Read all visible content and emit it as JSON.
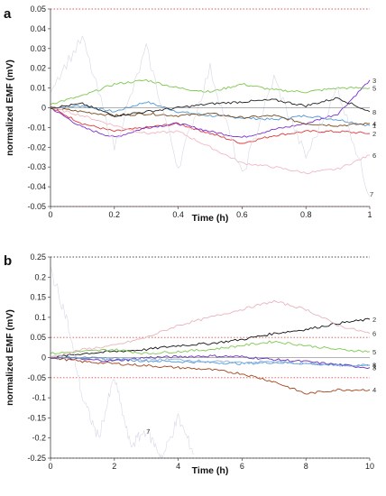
{
  "chart_data": [
    {
      "panel_label": "a",
      "type": "line",
      "xlabel": "Time (h)",
      "ylabel": "normalized EMF (mV)",
      "xlim": [
        0,
        1
      ],
      "ylim": [
        -0.05,
        0.05
      ],
      "xticks": [
        "0",
        "0.2",
        "0.4",
        "0.6",
        "0.8",
        "1"
      ],
      "yticks": [
        "-0.05",
        "-0.04",
        "-0.03",
        "-0.02",
        "-0.01",
        "0",
        "0.01",
        "0.02",
        "0.03",
        "0.04",
        "0.05"
      ],
      "reference_lines": [
        -0.05,
        0.05
      ],
      "grid": false,
      "series": [
        {
          "name": "1",
          "color": "#4f97d6",
          "x": [
            0,
            0.1,
            0.2,
            0.3,
            0.4,
            0.5,
            0.6,
            0.7,
            0.8,
            0.9,
            1
          ],
          "y": [
            0,
            0.001,
            -0.002,
            0.003,
            -0.002,
            -0.004,
            -0.005,
            -0.006,
            -0.004,
            -0.006,
            -0.009
          ]
        },
        {
          "name": "2",
          "color": "#e03a3a",
          "x": [
            0,
            0.1,
            0.2,
            0.3,
            0.4,
            0.5,
            0.6,
            0.7,
            0.8,
            0.9,
            1
          ],
          "y": [
            0,
            -0.008,
            -0.012,
            -0.01,
            -0.008,
            -0.013,
            -0.018,
            -0.014,
            -0.012,
            -0.012,
            -0.013
          ]
        },
        {
          "name": "3",
          "color": "#7a2fd0",
          "x": [
            0,
            0.1,
            0.2,
            0.3,
            0.4,
            0.5,
            0.6,
            0.7,
            0.8,
            0.9,
            1
          ],
          "y": [
            0,
            -0.01,
            -0.015,
            -0.01,
            -0.008,
            -0.012,
            -0.015,
            -0.011,
            -0.008,
            -0.003,
            0.014
          ]
        },
        {
          "name": "4",
          "color": "#7a4a1a",
          "x": [
            0,
            0.1,
            0.2,
            0.3,
            0.4,
            0.5,
            0.6,
            0.7,
            0.8,
            0.9,
            1
          ],
          "y": [
            0,
            -0.002,
            -0.004,
            -0.003,
            -0.004,
            -0.003,
            -0.005,
            -0.004,
            -0.008,
            -0.009,
            -0.008
          ]
        },
        {
          "name": "5",
          "color": "#7ec850",
          "x": [
            0,
            0.1,
            0.2,
            0.3,
            0.4,
            0.5,
            0.6,
            0.7,
            0.8,
            0.9,
            1
          ],
          "y": [
            0.002,
            0.006,
            0.012,
            0.014,
            0.01,
            0.008,
            0.012,
            0.009,
            0.008,
            0.01,
            0.01
          ]
        },
        {
          "name": "6",
          "color": "#f2b8c3",
          "x": [
            0,
            0.1,
            0.2,
            0.3,
            0.4,
            0.5,
            0.6,
            0.7,
            0.8,
            0.9,
            1
          ],
          "y": [
            0,
            -0.004,
            -0.009,
            -0.013,
            -0.012,
            -0.02,
            -0.028,
            -0.03,
            -0.033,
            -0.031,
            -0.024
          ]
        },
        {
          "name": "7",
          "color": "#d6d6e4",
          "x": [
            0,
            0.1,
            0.2,
            0.3,
            0.4,
            0.5,
            0.6,
            0.7,
            0.8,
            0.9,
            1
          ],
          "y": [
            0.01,
            0.035,
            -0.02,
            0.03,
            -0.03,
            0.02,
            -0.035,
            0.015,
            -0.025,
            0.01,
            -0.045
          ]
        },
        {
          "name": "8",
          "color": "#222222",
          "x": [
            0,
            0.1,
            0.2,
            0.3,
            0.4,
            0.5,
            0.6,
            0.7,
            0.8,
            0.9,
            1
          ],
          "y": [
            0,
            0.002,
            -0.004,
            -0.002,
            0,
            0.002,
            0.003,
            0.004,
            0.001,
            0.005,
            -0.002
          ]
        }
      ]
    },
    {
      "panel_label": "b",
      "type": "line",
      "xlabel": "Time (h)",
      "ylabel": "normalized EMF (mV)",
      "xlim": [
        0,
        10
      ],
      "ylim": [
        -0.25,
        0.25
      ],
      "xticks": [
        "0",
        "2",
        "4",
        "6",
        "8",
        "10"
      ],
      "yticks": [
        "-0.25",
        "-0.2",
        "-0.15",
        "-0.1",
        "-0.05",
        "0",
        "0.05",
        "0.1",
        "0.15",
        "0.2",
        "0.25"
      ],
      "reference_lines": [
        -0.25,
        -0.05,
        0.05,
        0.25
      ],
      "grid": false,
      "series": [
        {
          "name": "1",
          "color": "#4f97d6",
          "x": [
            0,
            1,
            2,
            3,
            4,
            5,
            6,
            7,
            8,
            9,
            10
          ],
          "y": [
            0,
            0,
            -0.005,
            -0.008,
            -0.01,
            -0.012,
            -0.015,
            -0.012,
            -0.015,
            -0.018,
            -0.02
          ]
        },
        {
          "name": "2",
          "color": "#111111",
          "x": [
            0,
            1,
            2,
            3,
            4,
            5,
            6,
            7,
            8,
            9,
            10
          ],
          "y": [
            0,
            0.01,
            0.015,
            0.02,
            0.03,
            0.035,
            0.045,
            0.06,
            0.07,
            0.085,
            0.095
          ]
        },
        {
          "name": "3",
          "color": "#6a2fc0",
          "x": [
            0,
            1,
            2,
            3,
            4,
            5,
            6,
            7,
            8,
            9,
            10
          ],
          "y": [
            0,
            -0.005,
            -0.008,
            0,
            0.002,
            0.004,
            0.002,
            -0.005,
            -0.01,
            -0.018,
            -0.025
          ]
        },
        {
          "name": "4",
          "color": "#a0441a",
          "x": [
            0,
            1,
            2,
            3,
            4,
            5,
            6,
            7,
            8,
            9,
            10
          ],
          "y": [
            0,
            -0.01,
            -0.015,
            -0.02,
            -0.025,
            -0.03,
            -0.04,
            -0.06,
            -0.09,
            -0.08,
            -0.08
          ]
        },
        {
          "name": "5",
          "color": "#7ec850",
          "x": [
            0,
            1,
            2,
            3,
            4,
            5,
            6,
            7,
            8,
            9,
            10
          ],
          "y": [
            0.01,
            0.015,
            0.02,
            0.01,
            0.015,
            0.02,
            0.03,
            0.04,
            0.03,
            0.02,
            0.015
          ]
        },
        {
          "name": "6",
          "color": "#e8b4bc",
          "x": [
            0,
            1,
            2,
            3,
            4,
            5,
            6,
            7,
            8,
            9,
            10
          ],
          "y": [
            0,
            0.02,
            0.03,
            0.05,
            0.08,
            0.1,
            0.12,
            0.14,
            0.12,
            0.08,
            0.06
          ]
        },
        {
          "name": "7",
          "color": "#d8d8e8",
          "x": [
            0,
            0.5,
            1,
            1.5,
            2,
            2.5,
            3,
            3.5,
            4,
            4.5
          ],
          "y": [
            0.22,
            0.1,
            -0.1,
            -0.2,
            -0.05,
            -0.22,
            -0.18,
            -0.25,
            -0.15,
            -0.24
          ]
        },
        {
          "name": "8",
          "color": "#8ab0e0",
          "x": [
            0,
            1,
            2,
            3,
            4,
            5,
            6,
            7,
            8,
            9,
            10
          ],
          "y": [
            0,
            0,
            -0.003,
            -0.005,
            -0.005,
            -0.01,
            -0.012,
            -0.01,
            -0.015,
            -0.02,
            -0.018
          ]
        }
      ]
    }
  ]
}
